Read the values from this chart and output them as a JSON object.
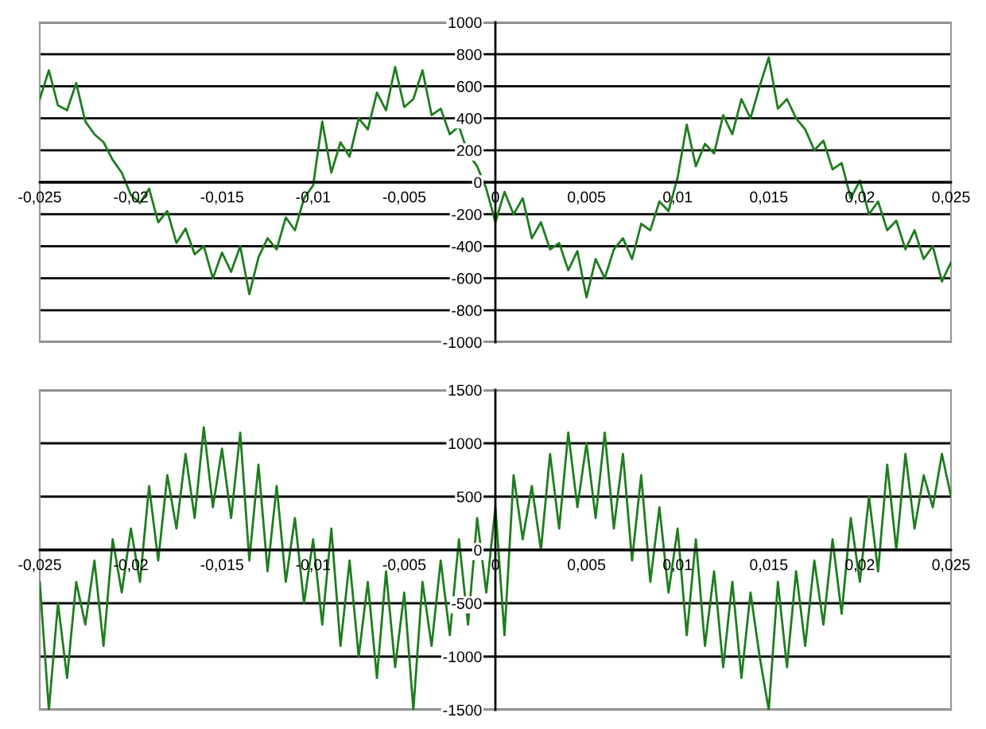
{
  "chart_data": [
    {
      "type": "line",
      "grid": "y",
      "x": [
        -0.025,
        -0.0245,
        -0.024,
        -0.0235,
        -0.023,
        -0.0225,
        -0.022,
        -0.0215,
        -0.021,
        -0.0205,
        -0.02,
        -0.0195,
        -0.019,
        -0.0185,
        -0.018,
        -0.0175,
        -0.017,
        -0.0165,
        -0.016,
        -0.0155,
        -0.015,
        -0.0145,
        -0.014,
        -0.0135,
        -0.013,
        -0.0125,
        -0.012,
        -0.0115,
        -0.011,
        -0.0105,
        -0.01,
        -0.0095,
        -0.009,
        -0.0085,
        -0.008,
        -0.0075,
        -0.007,
        -0.0065,
        -0.006,
        -0.0055,
        -0.005,
        -0.0045,
        -0.004,
        -0.0035,
        -0.003,
        -0.0025,
        -0.002,
        -0.0015,
        -0.001,
        -0.0005,
        0,
        0.0005,
        0.001,
        0.0015,
        0.002,
        0.0025,
        0.003,
        0.0035,
        0.004,
        0.0045,
        0.005,
        0.0055,
        0.006,
        0.0065,
        0.007,
        0.0075,
        0.008,
        0.0085,
        0.009,
        0.0095,
        0.01,
        0.0105,
        0.011,
        0.0115,
        0.012,
        0.0125,
        0.013,
        0.0135,
        0.014,
        0.0145,
        0.015,
        0.0155,
        0.016,
        0.0165,
        0.017,
        0.0175,
        0.018,
        0.0185,
        0.019,
        0.0195,
        0.02,
        0.0205,
        0.021,
        0.0215,
        0.022,
        0.0225,
        0.023,
        0.0235,
        0.024,
        0.0245,
        0.025
      ],
      "series": [
        {
          "color": "#1e7d1e",
          "values": [
            520,
            700,
            480,
            450,
            620,
            380,
            300,
            250,
            140,
            60,
            -80,
            -130,
            -40,
            -250,
            -180,
            -380,
            -290,
            -450,
            -400,
            -600,
            -440,
            -560,
            -400,
            -700,
            -470,
            -350,
            -420,
            -220,
            -300,
            -100,
            -20,
            380,
            60,
            250,
            160,
            400,
            330,
            560,
            450,
            720,
            470,
            520,
            700,
            420,
            460,
            300,
            350,
            180,
            100,
            -40,
            -250,
            -60,
            -200,
            -100,
            -350,
            -250,
            -420,
            -380,
            -550,
            -430,
            -720,
            -480,
            -600,
            -420,
            -350,
            -480,
            -260,
            -300,
            -120,
            -180,
            30,
            360,
            100,
            240,
            180,
            420,
            300,
            520,
            400,
            600,
            780,
            460,
            520,
            400,
            330,
            200,
            260,
            80,
            120,
            -100,
            10,
            -200,
            -120,
            -300,
            -240,
            -420,
            -300,
            -480,
            -400,
            -620,
            -500
          ]
        }
      ],
      "xlim": [
        -0.025,
        0.025
      ],
      "xticks": [
        {
          "value": -0.025,
          "label": "-0,025"
        },
        {
          "value": -0.02,
          "label": "-0,02"
        },
        {
          "value": -0.015,
          "label": "-0,015"
        },
        {
          "value": -0.01,
          "label": "-0,01"
        },
        {
          "value": -0.005,
          "label": "-0,005"
        },
        0,
        {
          "value": 0.005,
          "label": "0,005"
        },
        {
          "value": 0.01,
          "label": "0,01"
        },
        {
          "value": 0.015,
          "label": "0,015"
        },
        {
          "value": 0.02,
          "label": "0,02"
        },
        {
          "value": 0.025,
          "label": "0,025"
        }
      ],
      "ylim": [
        -1000,
        1000
      ],
      "yticks": [
        -1000,
        -800,
        -600,
        -400,
        -200,
        0,
        200,
        400,
        600,
        800,
        1000
      ]
    },
    {
      "type": "line",
      "grid": "y",
      "x": [
        -0.025,
        -0.0245,
        -0.024,
        -0.0235,
        -0.023,
        -0.0225,
        -0.022,
        -0.0215,
        -0.021,
        -0.0205,
        -0.02,
        -0.0195,
        -0.019,
        -0.0185,
        -0.018,
        -0.0175,
        -0.017,
        -0.0165,
        -0.016,
        -0.0155,
        -0.015,
        -0.0145,
        -0.014,
        -0.0135,
        -0.013,
        -0.0125,
        -0.012,
        -0.0115,
        -0.011,
        -0.0105,
        -0.01,
        -0.0095,
        -0.009,
        -0.0085,
        -0.008,
        -0.0075,
        -0.007,
        -0.0065,
        -0.006,
        -0.0055,
        -0.005,
        -0.0045,
        -0.004,
        -0.0035,
        -0.003,
        -0.0025,
        -0.002,
        -0.0015,
        -0.001,
        -0.0005,
        0,
        0.0005,
        0.001,
        0.0015,
        0.002,
        0.0025,
        0.003,
        0.0035,
        0.004,
        0.0045,
        0.005,
        0.0055,
        0.006,
        0.0065,
        0.007,
        0.0075,
        0.008,
        0.0085,
        0.009,
        0.0095,
        0.01,
        0.0105,
        0.011,
        0.0115,
        0.012,
        0.0125,
        0.013,
        0.0135,
        0.014,
        0.0145,
        0.015,
        0.0155,
        0.016,
        0.0165,
        0.017,
        0.0175,
        0.018,
        0.0185,
        0.019,
        0.0195,
        0.02,
        0.0205,
        0.021,
        0.0215,
        0.022,
        0.0225,
        0.023,
        0.0235,
        0.024,
        0.0245,
        0.025
      ],
      "series": [
        {
          "color": "#1e7d1e",
          "values": [
            -300,
            -1500,
            -500,
            -1200,
            -300,
            -700,
            -100,
            -900,
            100,
            -400,
            200,
            -300,
            600,
            -100,
            700,
            200,
            900,
            300,
            1150,
            400,
            950,
            300,
            1100,
            -100,
            800,
            -200,
            600,
            -300,
            300,
            -500,
            100,
            -700,
            200,
            -900,
            -100,
            -1000,
            -300,
            -1200,
            -200,
            -1100,
            -400,
            -1500,
            -300,
            -900,
            -100,
            -800,
            100,
            -700,
            300,
            -400,
            400,
            -800,
            700,
            100,
            600,
            0,
            900,
            200,
            1100,
            400,
            1000,
            300,
            1100,
            200,
            900,
            -100,
            700,
            -300,
            400,
            -400,
            200,
            -800,
            100,
            -900,
            -200,
            -1100,
            -300,
            -1200,
            -400,
            -1000,
            -1500,
            -300,
            -1100,
            -200,
            -900,
            -100,
            -700,
            100,
            -600,
            300,
            -300,
            500,
            -200,
            800,
            0,
            900,
            200,
            700,
            400,
            900,
            500
          ]
        }
      ],
      "xlim": [
        -0.025,
        0.025
      ],
      "xticks": [
        {
          "value": -0.025,
          "label": "-0,025"
        },
        {
          "value": -0.02,
          "label": "-0,02"
        },
        {
          "value": -0.015,
          "label": "-0,015"
        },
        {
          "value": -0.01,
          "label": "-0,01"
        },
        {
          "value": -0.005,
          "label": "-0,005"
        },
        0,
        {
          "value": 0.005,
          "label": "0,005"
        },
        {
          "value": 0.01,
          "label": "0,01"
        },
        {
          "value": 0.015,
          "label": "0,015"
        },
        {
          "value": 0.02,
          "label": "0,02"
        },
        {
          "value": 0.025,
          "label": "0,025"
        }
      ],
      "ylim": [
        -1500,
        1500
      ],
      "yticks": [
        -1500,
        -1000,
        -500,
        0,
        500,
        1000,
        1500
      ]
    }
  ]
}
